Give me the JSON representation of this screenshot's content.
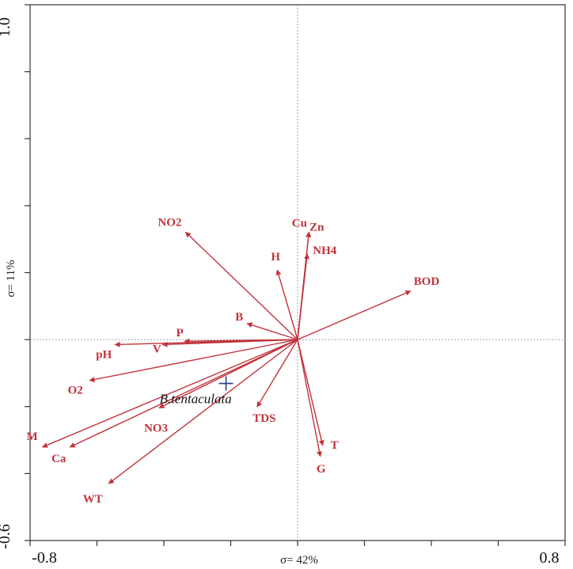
{
  "chart_data": {
    "type": "scatter",
    "subtype": "rda-biplot",
    "title": "",
    "xlabel": "σ= 42%",
    "ylabel": "σ= 11%",
    "xlim": [
      -0.8,
      0.8
    ],
    "ylim": [
      -0.6,
      1.0
    ],
    "x_tick_labels": {
      "min": "-0.8",
      "max": "0.8"
    },
    "y_tick_labels": {
      "min": "-0.6",
      "max": "1.0"
    },
    "x_tick_step": 0.2,
    "y_tick_step": 0.2,
    "reference_lines": {
      "x": 0,
      "y": 0
    },
    "colors": {
      "vector": "#c0333b",
      "species": "#2b3a8a",
      "axis": "#333333",
      "reference": "#8a8a8a"
    },
    "vectors": [
      {
        "name": "NO2",
        "x": -0.335,
        "y": 0.321
      },
      {
        "name": "Cu",
        "x": 0.034,
        "y": 0.321
      },
      {
        "name": "Zn",
        "x": 0.034,
        "y": 0.321
      },
      {
        "name": "NH4",
        "x": 0.029,
        "y": 0.256
      },
      {
        "name": "H",
        "x": -0.061,
        "y": 0.208
      },
      {
        "name": "BOD",
        "x": 0.338,
        "y": 0.145
      },
      {
        "name": "B",
        "x": -0.151,
        "y": 0.048
      },
      {
        "name": "P",
        "x": -0.338,
        "y": -0.005
      },
      {
        "name": "V",
        "x": -0.404,
        "y": -0.015
      },
      {
        "name": "pH",
        "x": -0.546,
        "y": -0.015
      },
      {
        "name": "O2",
        "x": -0.622,
        "y": -0.122
      },
      {
        "name": "NO3",
        "x": -0.414,
        "y": -0.204
      },
      {
        "name": "M",
        "x": -0.763,
        "y": -0.321
      },
      {
        "name": "Ca",
        "x": -0.681,
        "y": -0.321
      },
      {
        "name": "WT",
        "x": -0.565,
        "y": -0.43
      },
      {
        "name": "TDS",
        "x": -0.121,
        "y": -0.201
      },
      {
        "name": "T",
        "x": 0.075,
        "y": -0.316
      },
      {
        "name": "G",
        "x": 0.068,
        "y": -0.349
      }
    ],
    "species": [
      {
        "name": "B.tentaculata",
        "x": -0.214,
        "y": -0.131
      }
    ]
  }
}
